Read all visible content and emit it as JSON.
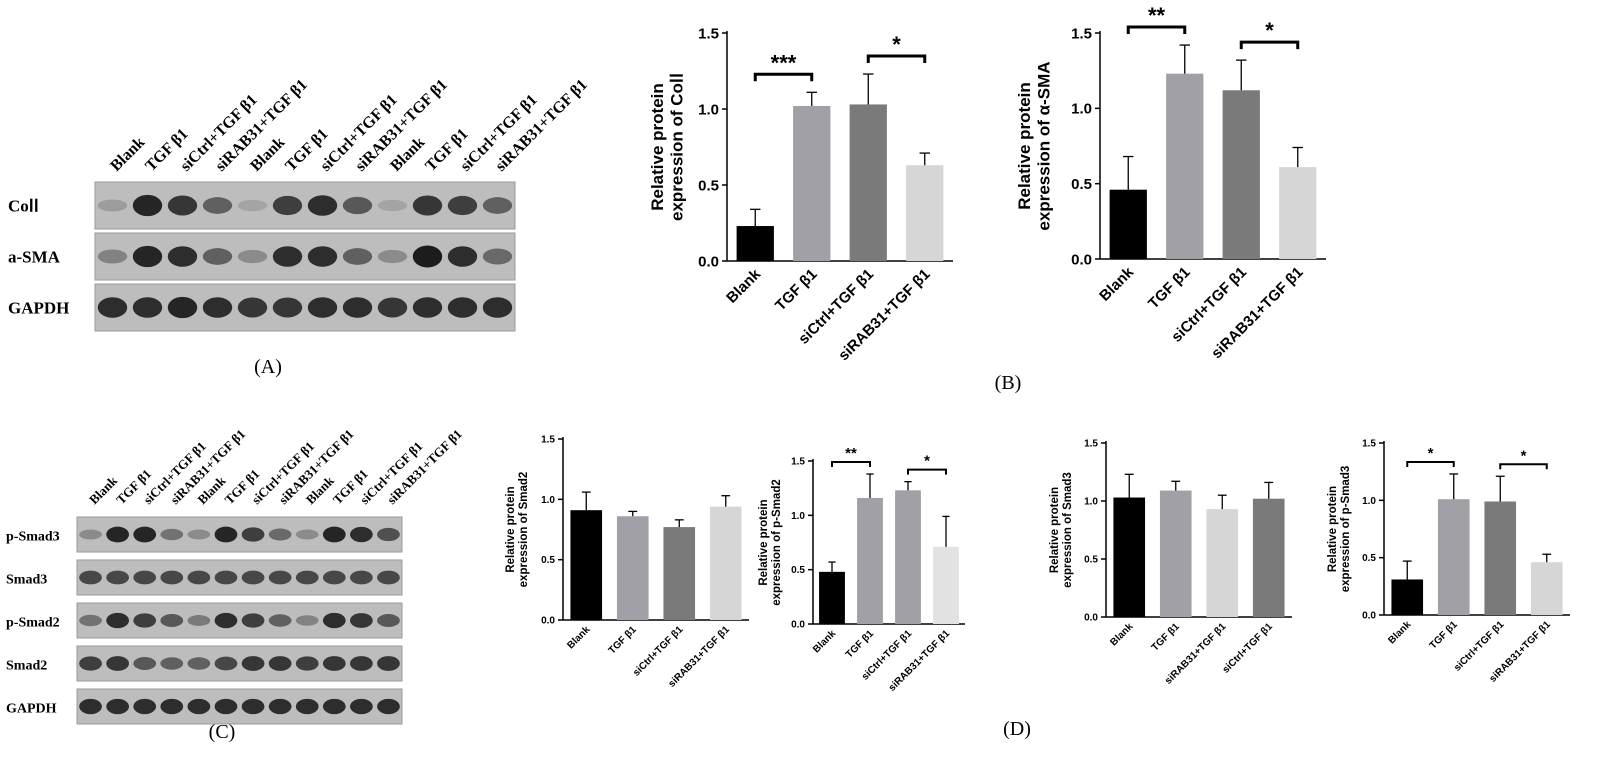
{
  "panels": {
    "A": "(A)",
    "B": "(B)",
    "C": "(C)",
    "D": "(D)"
  },
  "blot_A": {
    "lanes": [
      "Blank",
      "TGF β1",
      "siCtrl+TGF β1",
      "siRAB31+TGF β1",
      "Blank",
      "TGF β1",
      "siCtrl+TGF β1",
      "siRAB31+TGF β1",
      "Blank",
      "TGF β1",
      "siCtrl+TGF β1",
      "siRAB31+TGF β1"
    ],
    "rows": [
      {
        "label": "CoⅠⅠ",
        "intensity": [
          0.2,
          0.9,
          0.8,
          0.55,
          0.15,
          0.75,
          0.85,
          0.6,
          0.15,
          0.8,
          0.75,
          0.55
        ]
      },
      {
        "label": "a-SMA",
        "intensity": [
          0.35,
          0.9,
          0.85,
          0.55,
          0.3,
          0.85,
          0.85,
          0.55,
          0.3,
          0.95,
          0.85,
          0.5
        ]
      },
      {
        "label": "GAPDH",
        "intensity": [
          0.85,
          0.85,
          0.9,
          0.85,
          0.8,
          0.8,
          0.85,
          0.85,
          0.8,
          0.85,
          0.85,
          0.85
        ]
      }
    ]
  },
  "blot_C": {
    "lanes": [
      "Blank",
      "TGF β1",
      "siCtrl+TGF β1",
      "siRAB31+TGF β1",
      "Blank",
      "TGF β1",
      "siCtrl+TGF β1",
      "siRAB31+TGF β1",
      "Blank",
      "TGF β1",
      "siCtrl+TGF β1",
      "siRAB31+TGF β1"
    ],
    "rows": [
      {
        "label": "p-Smad3",
        "intensity": [
          0.3,
          0.9,
          0.9,
          0.45,
          0.3,
          0.9,
          0.75,
          0.5,
          0.3,
          0.9,
          0.85,
          0.65
        ]
      },
      {
        "label": "Smad3",
        "intensity": [
          0.7,
          0.7,
          0.7,
          0.7,
          0.7,
          0.7,
          0.7,
          0.7,
          0.7,
          0.7,
          0.7,
          0.7
        ]
      },
      {
        "label": "p-Smad2",
        "intensity": [
          0.45,
          0.85,
          0.75,
          0.6,
          0.4,
          0.85,
          0.75,
          0.55,
          0.35,
          0.85,
          0.8,
          0.6
        ]
      },
      {
        "label": "Smad2",
        "intensity": [
          0.75,
          0.8,
          0.6,
          0.55,
          0.55,
          0.7,
          0.8,
          0.8,
          0.75,
          0.8,
          0.8,
          0.8
        ]
      },
      {
        "label": "GAPDH",
        "intensity": [
          0.85,
          0.85,
          0.85,
          0.85,
          0.85,
          0.85,
          0.85,
          0.85,
          0.85,
          0.85,
          0.85,
          0.85
        ]
      }
    ]
  },
  "chart_data": [
    {
      "id": "coll",
      "type": "bar",
      "ylabel_lines": [
        "Relative protein",
        "expression of CoⅠⅠ"
      ],
      "categories": [
        "Blank",
        "TGF β1",
        "siCtrl+TGF β1",
        "siRAB31+TGF β1"
      ],
      "values": [
        0.23,
        1.02,
        1.03,
        0.63
      ],
      "errors": [
        0.11,
        0.09,
        0.2,
        0.08
      ],
      "colors": [
        "#000000",
        "#a0a0a6",
        "#7a7a7a",
        "#d6d6d6"
      ],
      "ylim": [
        0,
        1.5
      ],
      "yticks": [
        "0.0",
        "0.5",
        "1.0",
        "1.5"
      ],
      "significance": [
        {
          "from": 0,
          "to": 1,
          "label": "***"
        },
        {
          "from": 2,
          "to": 3,
          "label": "*"
        }
      ]
    },
    {
      "id": "asma",
      "type": "bar",
      "ylabel_lines": [
        "Relative protein",
        "expression of α-SMA"
      ],
      "categories": [
        "Blank",
        "TGF β1",
        "siCtrl+TGF β1",
        "siRAB31+TGF β1"
      ],
      "values": [
        0.46,
        1.23,
        1.12,
        0.61
      ],
      "errors": [
        0.22,
        0.19,
        0.2,
        0.13
      ],
      "colors": [
        "#000000",
        "#a0a0a6",
        "#7a7a7a",
        "#d6d6d6"
      ],
      "ylim": [
        0,
        1.5
      ],
      "yticks": [
        "0.0",
        "0.5",
        "1.0",
        "1.5"
      ],
      "significance": [
        {
          "from": 0,
          "to": 1,
          "label": "**"
        },
        {
          "from": 2,
          "to": 3,
          "label": "*"
        }
      ]
    },
    {
      "id": "smad2",
      "type": "bar",
      "ylabel_lines": [
        "Relative protein",
        "expression of Smad2"
      ],
      "categories": [
        "Blank",
        "TGF β1",
        "siCtrl+TGF β1",
        "siRAB31+TGF β1"
      ],
      "values": [
        0.91,
        0.86,
        0.77,
        0.94
      ],
      "errors": [
        0.15,
        0.04,
        0.06,
        0.09
      ],
      "colors": [
        "#000000",
        "#a0a0a6",
        "#7a7a7a",
        "#d6d6d6"
      ],
      "ylim": [
        0,
        1.5
      ],
      "yticks": [
        "0.0",
        "0.5",
        "1.0",
        "1.5"
      ],
      "significance": []
    },
    {
      "id": "psmad2",
      "type": "bar",
      "ylabel_lines": [
        "Relative protein",
        "expression of p-Smad2"
      ],
      "categories": [
        "Blank",
        "TGF β1",
        "siCtrl+TGF β1",
        "siRAB31+TGF β1"
      ],
      "values": [
        0.48,
        1.16,
        1.23,
        0.71
      ],
      "errors": [
        0.09,
        0.22,
        0.08,
        0.28
      ],
      "colors": [
        "#000000",
        "#a0a0a6",
        "#a0a0a6",
        "#e2e2e2"
      ],
      "ylim": [
        0,
        1.5
      ],
      "yticks": [
        "0.0",
        "0.5",
        "1.0",
        "1.5"
      ],
      "significance": [
        {
          "from": 0,
          "to": 1,
          "label": "**"
        },
        {
          "from": 2,
          "to": 3,
          "label": "*"
        }
      ]
    },
    {
      "id": "smad3",
      "type": "bar",
      "ylabel_lines": [
        "Relative protein",
        "expression of Smad3"
      ],
      "categories": [
        "Blank",
        "TGF β1",
        "siRAB31+TGF β1",
        "siCtrl+TGF β1"
      ],
      "values": [
        1.03,
        1.09,
        0.93,
        1.02
      ],
      "errors": [
        0.2,
        0.08,
        0.12,
        0.14
      ],
      "colors": [
        "#000000",
        "#a0a0a6",
        "#d6d6d6",
        "#7a7a7a"
      ],
      "ylim": [
        0,
        1.5
      ],
      "yticks": [
        "0.0",
        "0.5",
        "1.0",
        "1.5"
      ],
      "significance": []
    },
    {
      "id": "psmad3",
      "type": "bar",
      "ylabel_lines": [
        "Relative protein",
        "expression of p-Smad3"
      ],
      "categories": [
        "Blank",
        "TGF β1",
        "siCtrl+TGF β1",
        "siRAB31+TGF β1"
      ],
      "values": [
        0.31,
        1.01,
        0.99,
        0.46
      ],
      "errors": [
        0.16,
        0.22,
        0.22,
        0.07
      ],
      "colors": [
        "#000000",
        "#a0a0a6",
        "#7a7a7a",
        "#d6d6d6"
      ],
      "ylim": [
        0,
        1.5
      ],
      "yticks": [
        "0.0",
        "0.5",
        "1.0",
        "1.5"
      ],
      "significance": [
        {
          "from": 0,
          "to": 1,
          "label": "*"
        },
        {
          "from": 2,
          "to": 3,
          "label": "*"
        }
      ]
    }
  ]
}
